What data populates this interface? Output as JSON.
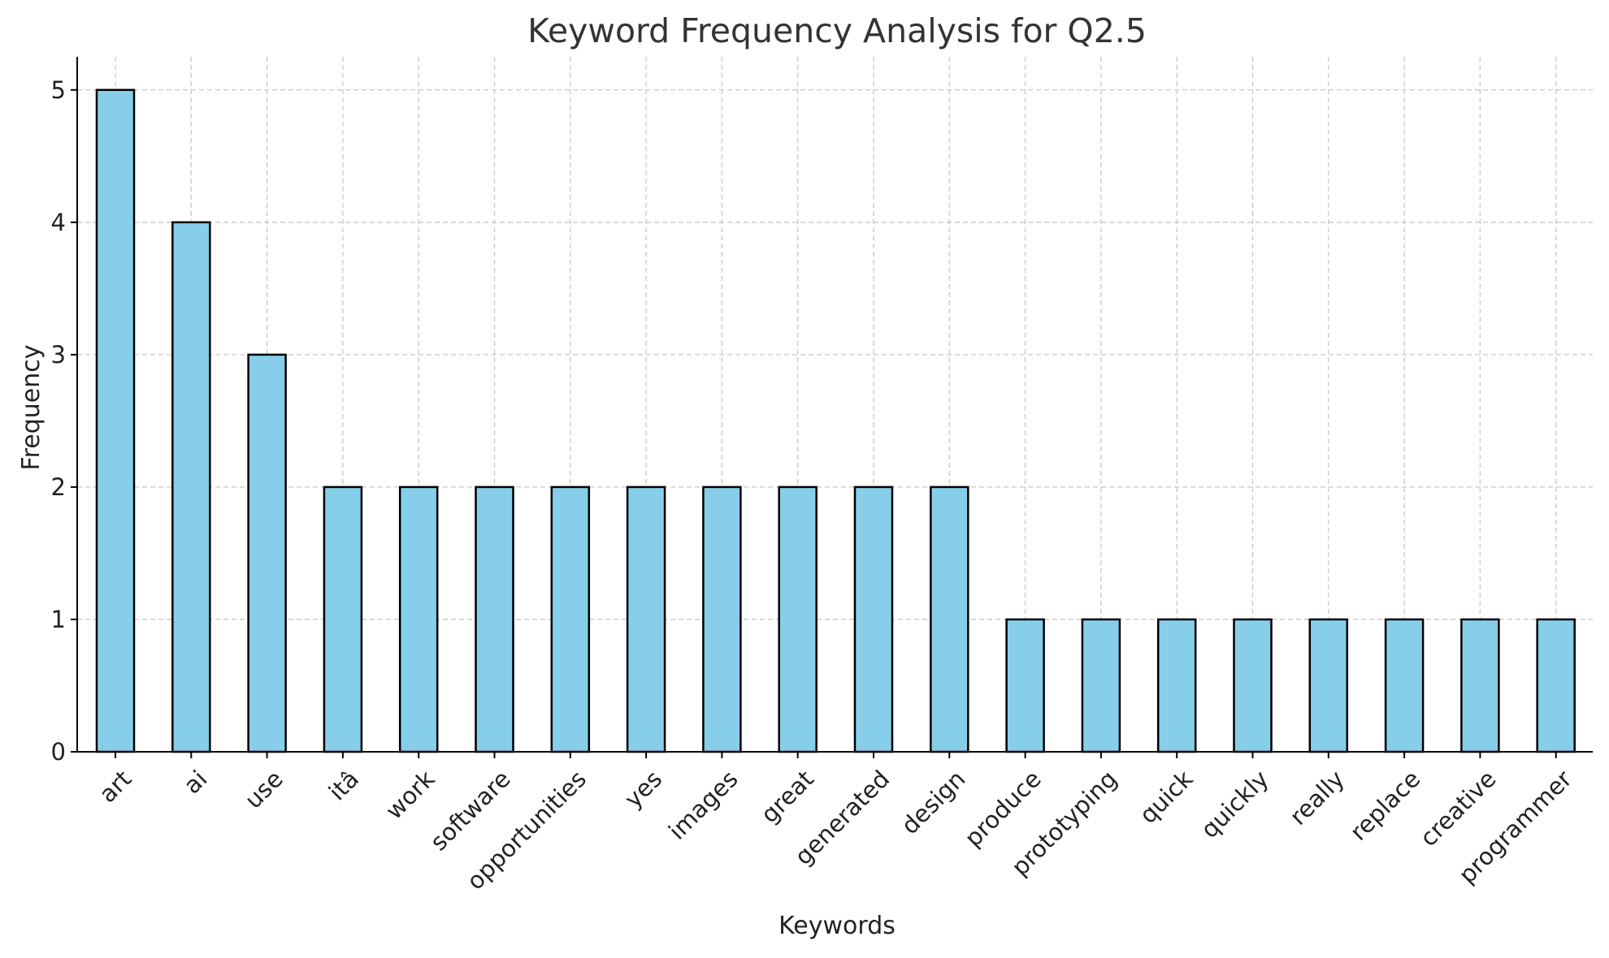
{
  "colors": {
    "bar_fill": "#87ceeb",
    "bar_edge": "#000000",
    "grid": "#c8c8c8"
  },
  "chart_data": {
    "type": "bar",
    "title": "Keyword Frequency Analysis for Q2.5",
    "xlabel": "Keywords",
    "ylabel": "Frequency",
    "categories": [
      "art",
      "ai",
      "use",
      "itâ",
      "work",
      "software",
      "opportunities",
      "yes",
      "images",
      "great",
      "generated",
      "design",
      "produce",
      "prototyping",
      "quick",
      "quickly",
      "really",
      "replace",
      "creative",
      "programmer"
    ],
    "values": [
      5,
      4,
      3,
      2,
      2,
      2,
      2,
      2,
      2,
      2,
      2,
      2,
      1,
      1,
      1,
      1,
      1,
      1,
      1,
      1
    ],
    "ylim": [
      0,
      5.25
    ],
    "yticks": [
      0,
      1,
      2,
      3,
      4,
      5
    ],
    "grid": true,
    "legend": "none"
  }
}
